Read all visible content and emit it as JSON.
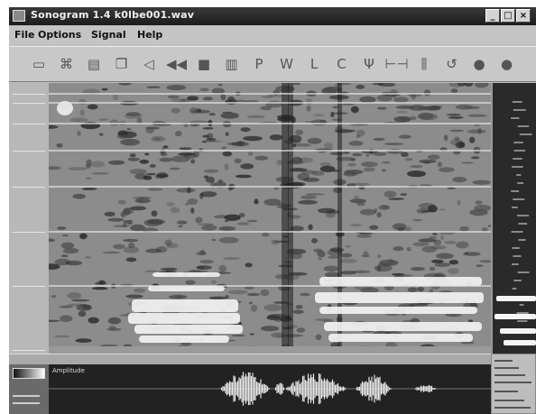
{
  "window": {
    "title": "Sonogram 1.4  k0lbe001.wav",
    "controls": {
      "minimize": "_",
      "maximize": "□",
      "close": "×"
    }
  },
  "menu": [
    "File",
    "Options",
    "Signal",
    "Help"
  ],
  "toolbar": {
    "tools": [
      {
        "name": "open-folder-icon",
        "glyph": "▭"
      },
      {
        "name": "multi-tool-icon",
        "glyph": "⌘"
      },
      {
        "name": "document-icon",
        "glyph": "▤"
      },
      {
        "name": "copy-icon",
        "glyph": "❐"
      },
      {
        "name": "speaker-icon",
        "glyph": "◁"
      },
      {
        "name": "rewind-icon",
        "glyph": "◀◀"
      },
      {
        "name": "stop-icon",
        "glyph": "■"
      },
      {
        "name": "spectrum-icon",
        "glyph": "▥"
      },
      {
        "name": "p-icon",
        "glyph": "P"
      },
      {
        "name": "grip-icon",
        "glyph": "W"
      },
      {
        "name": "l-icon",
        "glyph": "L"
      },
      {
        "name": "c-icon",
        "glyph": "C"
      },
      {
        "name": "w-icon",
        "glyph": "Ψ"
      },
      {
        "name": "bracket-icon",
        "glyph": "⊢⊣"
      },
      {
        "name": "bars-icon",
        "glyph": "⫼"
      },
      {
        "name": "refresh-icon",
        "glyph": "↺"
      },
      {
        "name": "sphere-icon-1",
        "glyph": "●"
      },
      {
        "name": "sphere-icon-2",
        "glyph": "●"
      }
    ]
  },
  "waveform": {
    "label": "Amplitude"
  },
  "colors": {
    "titlebar": "#1c1c1c",
    "spectrogram_bg": "#8c8c8c",
    "waveform_bg": "#222222",
    "chrome": "#c0c0c0"
  }
}
